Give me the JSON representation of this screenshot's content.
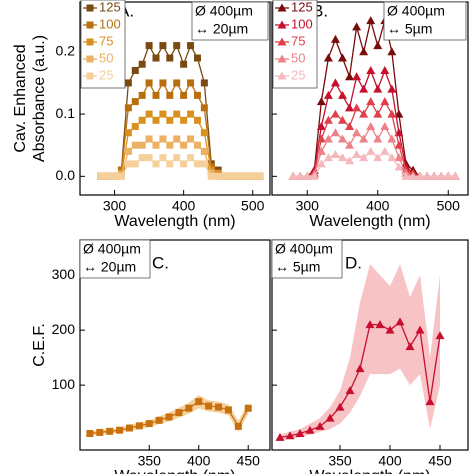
{
  "chart_data": [
    {
      "type": "line",
      "label": "A.",
      "notes": [
        "Ø 400µm",
        "↔ 20µm"
      ],
      "marker": "square",
      "xlabel": "Wavelength (nm)",
      "ylabel": [
        "Cav. Enhanced",
        "Absorbance (a.u.)"
      ],
      "xlim": [
        250,
        525
      ],
      "xticks": [
        300,
        400,
        500
      ],
      "ylim": [
        -0.03,
        0.28
      ],
      "yticks": [
        {
          "value": 0,
          "label": "0.0"
        },
        0.1,
        0.2
      ],
      "ytick_labels": true,
      "legend": "upper left",
      "x": [
        280,
        290,
        300,
        310,
        320,
        330,
        340,
        350,
        360,
        370,
        380,
        390,
        400,
        410,
        420,
        430,
        440,
        450,
        460,
        470,
        480,
        490,
        500,
        510
      ],
      "series": [
        {
          "name": "125",
          "color": "#7a4a10",
          "values": [
            0,
            0,
            0,
            0.01,
            0.15,
            0.17,
            0.18,
            0.21,
            0.19,
            0.21,
            0.19,
            0.21,
            0.18,
            0.21,
            0.19,
            0.15,
            0.02,
            0.01,
            0,
            0,
            0,
            0,
            0,
            0
          ]
        },
        {
          "name": "100",
          "color": "#b8700e",
          "values": [
            0,
            0,
            0,
            0.01,
            0.11,
            0.12,
            0.13,
            0.15,
            0.13,
            0.15,
            0.13,
            0.15,
            0.13,
            0.15,
            0.13,
            0.11,
            0.015,
            0.005,
            0,
            0,
            0,
            0,
            0,
            0
          ]
        },
        {
          "name": "75",
          "color": "#d9901e",
          "values": [
            0,
            0,
            0,
            0.005,
            0.07,
            0.08,
            0.09,
            0.1,
            0.09,
            0.1,
            0.09,
            0.1,
            0.09,
            0.1,
            0.09,
            0.07,
            0.01,
            0.005,
            0,
            0,
            0,
            0,
            0,
            0
          ]
        },
        {
          "name": "50",
          "color": "#ecb060",
          "values": [
            0,
            0,
            0,
            0.003,
            0.04,
            0.05,
            0.05,
            0.06,
            0.05,
            0.06,
            0.05,
            0.06,
            0.05,
            0.06,
            0.05,
            0.04,
            0.005,
            0,
            0,
            0,
            0,
            0,
            0,
            0
          ]
        },
        {
          "name": "25",
          "color": "#f5d09a",
          "values": [
            0,
            0,
            0,
            0,
            0.02,
            0.02,
            0.03,
            0.03,
            0.02,
            0.03,
            0.02,
            0.03,
            0.02,
            0.03,
            0.02,
            0.02,
            0,
            0,
            0,
            0,
            0,
            0,
            0,
            0
          ]
        }
      ]
    },
    {
      "type": "line",
      "label": "B.",
      "notes": [
        "Ø 400µm",
        "↔ 5µm"
      ],
      "marker": "triangle",
      "xlabel": "Wavelength (nm)",
      "xlim": [
        250,
        528
      ],
      "xticks": [
        300,
        400,
        500
      ],
      "ylim": [
        -0.03,
        0.28
      ],
      "yticks": [
        0,
        0.1,
        0.2
      ],
      "ytick_labels": false,
      "legend": "upper left",
      "x": [
        280,
        290,
        300,
        310,
        320,
        330,
        340,
        350,
        360,
        370,
        380,
        390,
        400,
        410,
        420,
        430,
        440,
        450,
        460,
        470,
        480,
        490,
        500,
        510
      ],
      "series": [
        {
          "name": "125",
          "color": "#7a0c0c",
          "values": [
            0,
            0,
            0,
            0.01,
            0.12,
            0.19,
            0.22,
            0.19,
            0.16,
            0.24,
            0.2,
            0.25,
            0.21,
            0.25,
            0.2,
            0.1,
            0.02,
            0.01,
            0,
            0,
            0,
            0,
            0,
            0
          ]
        },
        {
          "name": "100",
          "color": "#c8102e",
          "values": [
            0,
            0,
            0,
            0.01,
            0.08,
            0.13,
            0.15,
            0.13,
            0.11,
            0.16,
            0.14,
            0.17,
            0.14,
            0.17,
            0.14,
            0.07,
            0.015,
            0.005,
            0,
            0,
            0,
            0,
            0,
            0
          ]
        },
        {
          "name": "75",
          "color": "#e0404a",
          "values": [
            0,
            0,
            0,
            0.005,
            0.06,
            0.09,
            0.1,
            0.09,
            0.08,
            0.11,
            0.1,
            0.12,
            0.1,
            0.12,
            0.1,
            0.05,
            0.01,
            0.005,
            0,
            0,
            0,
            0,
            0,
            0
          ]
        },
        {
          "name": "50",
          "color": "#ee8088",
          "values": [
            0,
            0,
            0,
            0.003,
            0.04,
            0.06,
            0.07,
            0.06,
            0.05,
            0.07,
            0.06,
            0.08,
            0.06,
            0.08,
            0.06,
            0.03,
            0.005,
            0,
            0,
            0,
            0,
            0,
            0,
            0
          ]
        },
        {
          "name": "25",
          "color": "#f5b8bc",
          "values": [
            0,
            0,
            0,
            0,
            0.02,
            0.03,
            0.035,
            0.03,
            0.025,
            0.035,
            0.03,
            0.04,
            0.03,
            0.04,
            0.03,
            0.015,
            0,
            0,
            0,
            0,
            0,
            0,
            0,
            0
          ]
        }
      ]
    },
    {
      "type": "line",
      "label": "C.",
      "notes": [
        "Ø 400µm",
        "↔ 20µm"
      ],
      "marker": "square",
      "xlabel": "Wavelength (nm)",
      "ylabel": [
        "C.E.F."
      ],
      "xlim": [
        280,
        472
      ],
      "xticks": [
        350,
        400,
        450
      ],
      "ylim": [
        -18,
        364
      ],
      "yticks": [
        100,
        200,
        300
      ],
      "ytick_labels": true,
      "x": [
        290,
        300,
        310,
        320,
        330,
        340,
        350,
        360,
        370,
        380,
        390,
        400,
        410,
        420,
        430,
        440,
        450
      ],
      "band_color": "#f3c98a",
      "band_lower": [
        8,
        10,
        12,
        14,
        17,
        20,
        24,
        29,
        34,
        41,
        48,
        58,
        52,
        50,
        45,
        15,
        48
      ],
      "band_upper": [
        16,
        18,
        20,
        22,
        27,
        32,
        36,
        43,
        50,
        59,
        68,
        82,
        72,
        70,
        65,
        35,
        68
      ],
      "series": [
        {
          "name": "C.E.F.",
          "color": "#c8700e",
          "values": [
            12,
            14,
            16,
            18,
            22,
            26,
            30,
            36,
            42,
            50,
            58,
            70,
            62,
            60,
            55,
            25,
            58
          ]
        }
      ]
    },
    {
      "type": "line",
      "label": "D.",
      "notes": [
        "Ø 400µm",
        "↔ 5µm"
      ],
      "marker": "triangle",
      "xlabel": "Wavelength (nm)",
      "xlim": [
        282,
        478
      ],
      "xticks": [
        350,
        400,
        450
      ],
      "ylim": [
        -18,
        364
      ],
      "yticks": [
        100,
        200,
        300
      ],
      "ytick_labels": false,
      "x": [
        290,
        300,
        310,
        320,
        330,
        340,
        350,
        360,
        370,
        380,
        390,
        400,
        410,
        420,
        430,
        440,
        450
      ],
      "band_color": "#f7b9bb",
      "band_lower": [
        0,
        2,
        5,
        10,
        15,
        20,
        30,
        50,
        80,
        120,
        120,
        120,
        130,
        100,
        120,
        20,
        100
      ],
      "band_upper": [
        10,
        15,
        20,
        30,
        40,
        60,
        90,
        150,
        250,
        320,
        300,
        280,
        320,
        260,
        300,
        150,
        300
      ],
      "series": [
        {
          "name": "C.E.F.",
          "color": "#c8102e",
          "values": [
            5,
            8,
            12,
            18,
            25,
            40,
            60,
            90,
            130,
            210,
            210,
            200,
            215,
            170,
            200,
            70,
            190
          ]
        }
      ]
    }
  ]
}
